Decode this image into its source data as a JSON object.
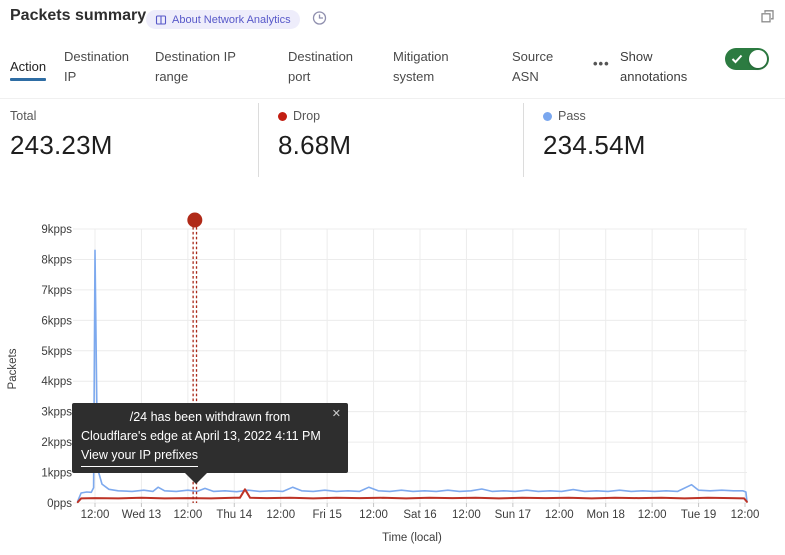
{
  "header": {
    "title": "Packets summary",
    "badge_label": "About Network Analytics"
  },
  "tabs": [
    {
      "label": "Action",
      "active": true
    },
    {
      "label": "Destination IP"
    },
    {
      "label": "Destination IP range"
    },
    {
      "label": "Destination port"
    },
    {
      "label": "Mitigation system"
    },
    {
      "label": "Source ASN"
    }
  ],
  "more_tabs_label": "•••",
  "annotations_toggle": {
    "label": "Show annotations",
    "enabled": true
  },
  "stats": [
    {
      "label": "Total",
      "value": "243.23M"
    },
    {
      "label": "Drop",
      "value": "8.68M",
      "dot_color": "#c21e12"
    },
    {
      "label": "Pass",
      "value": "234.54M",
      "dot_color": "#7aa7ef"
    }
  ],
  "tooltip": {
    "line1": "/24 has been withdrawn from",
    "line2": "Cloudflare's edge at April 13, 2022 4:11 PM",
    "link_label": "View your IP prefixes",
    "close_label": "✕"
  },
  "chart_data": {
    "type": "line",
    "title": "Packets summary",
    "xlabel": "Time (local)",
    "ylabel": "Packets",
    "unit": "kpps",
    "ylim_kpps": [
      0,
      9
    ],
    "grid": true,
    "x_ticks": [
      "12:00",
      "Wed 13",
      "12:00",
      "Thu 14",
      "12:00",
      "Fri 15",
      "12:00",
      "Sat 16",
      "12:00",
      "Sun 17",
      "12:00",
      "Mon 18",
      "12:00",
      "Tue 19",
      "12:00"
    ],
    "y_ticks": [
      "9kpps",
      "8kpps",
      "7kpps",
      "6kpps",
      "5kpps",
      "4kpps",
      "3kpps",
      "2kpps",
      "1kpps",
      "0pps"
    ],
    "annotation": {
      "tick_pos": 2.15,
      "color": "#a8291a",
      "dot_color": "#b02a18",
      "note": "/24 has been withdrawn from Cloudflare's edge at April 13, 2022 4:11 PM"
    },
    "series": [
      {
        "name": "Pass",
        "color": "#7da9ee",
        "width": 1.6,
        "points": [
          [
            -0.37,
            0.07
          ],
          [
            -0.3,
            0.33
          ],
          [
            -0.18,
            0.36
          ],
          [
            -0.08,
            0.35
          ],
          [
            -0.03,
            0.5
          ],
          [
            0.0,
            8.3
          ],
          [
            0.04,
            3.0
          ],
          [
            0.08,
            1.0
          ],
          [
            0.15,
            0.62
          ],
          [
            0.3,
            0.45
          ],
          [
            0.5,
            0.4
          ],
          [
            0.8,
            0.38
          ],
          [
            1.05,
            0.42
          ],
          [
            1.25,
            0.38
          ],
          [
            1.36,
            0.52
          ],
          [
            1.5,
            0.4
          ],
          [
            1.75,
            0.38
          ],
          [
            2.0,
            0.42
          ],
          [
            2.2,
            0.38
          ],
          [
            2.37,
            0.48
          ],
          [
            2.55,
            0.38
          ],
          [
            2.8,
            0.4
          ],
          [
            3.05,
            0.37
          ],
          [
            3.3,
            0.42
          ],
          [
            3.55,
            0.38
          ],
          [
            3.8,
            0.4
          ],
          [
            4.05,
            0.38
          ],
          [
            4.26,
            0.52
          ],
          [
            4.45,
            0.4
          ],
          [
            4.7,
            0.38
          ],
          [
            4.95,
            0.42
          ],
          [
            5.2,
            0.38
          ],
          [
            5.45,
            0.4
          ],
          [
            5.7,
            0.38
          ],
          [
            5.9,
            0.52
          ],
          [
            6.1,
            0.4
          ],
          [
            6.35,
            0.38
          ],
          [
            6.6,
            0.42
          ],
          [
            6.85,
            0.38
          ],
          [
            7.1,
            0.4
          ],
          [
            7.35,
            0.38
          ],
          [
            7.6,
            0.42
          ],
          [
            7.85,
            0.38
          ],
          [
            8.1,
            0.4
          ],
          [
            8.33,
            0.46
          ],
          [
            8.55,
            0.38
          ],
          [
            8.8,
            0.4
          ],
          [
            9.05,
            0.38
          ],
          [
            9.3,
            0.42
          ],
          [
            9.55,
            0.38
          ],
          [
            9.8,
            0.4
          ],
          [
            10.05,
            0.38
          ],
          [
            10.3,
            0.44
          ],
          [
            10.55,
            0.38
          ],
          [
            10.8,
            0.4
          ],
          [
            11.05,
            0.38
          ],
          [
            11.3,
            0.42
          ],
          [
            11.55,
            0.38
          ],
          [
            11.8,
            0.4
          ],
          [
            12.05,
            0.38
          ],
          [
            12.3,
            0.4
          ],
          [
            12.55,
            0.38
          ],
          [
            12.85,
            0.6
          ],
          [
            13.0,
            0.42
          ],
          [
            13.25,
            0.4
          ],
          [
            13.5,
            0.42
          ],
          [
            13.75,
            0.4
          ],
          [
            13.95,
            0.4
          ],
          [
            14.02,
            0.36
          ],
          [
            14.04,
            0.07
          ]
        ]
      },
      {
        "name": "Drop",
        "color": "#bd3326",
        "width": 2,
        "points": [
          [
            -0.37,
            0.03
          ],
          [
            -0.3,
            0.15
          ],
          [
            0.0,
            0.16
          ],
          [
            0.5,
            0.15
          ],
          [
            1.0,
            0.17
          ],
          [
            1.5,
            0.15
          ],
          [
            2.0,
            0.16
          ],
          [
            2.5,
            0.15
          ],
          [
            3.0,
            0.17
          ],
          [
            3.12,
            0.17
          ],
          [
            3.23,
            0.45
          ],
          [
            3.34,
            0.17
          ],
          [
            3.7,
            0.16
          ],
          [
            4.2,
            0.17
          ],
          [
            4.7,
            0.15
          ],
          [
            5.2,
            0.17
          ],
          [
            5.7,
            0.16
          ],
          [
            6.2,
            0.17
          ],
          [
            6.7,
            0.15
          ],
          [
            7.2,
            0.17
          ],
          [
            7.7,
            0.16
          ],
          [
            8.2,
            0.17
          ],
          [
            8.7,
            0.15
          ],
          [
            9.2,
            0.17
          ],
          [
            9.7,
            0.16
          ],
          [
            10.2,
            0.17
          ],
          [
            10.7,
            0.15
          ],
          [
            11.2,
            0.17
          ],
          [
            11.7,
            0.16
          ],
          [
            12.2,
            0.17
          ],
          [
            12.7,
            0.15
          ],
          [
            13.2,
            0.17
          ],
          [
            13.7,
            0.16
          ],
          [
            13.98,
            0.15
          ],
          [
            14.04,
            0.04
          ]
        ]
      }
    ]
  }
}
